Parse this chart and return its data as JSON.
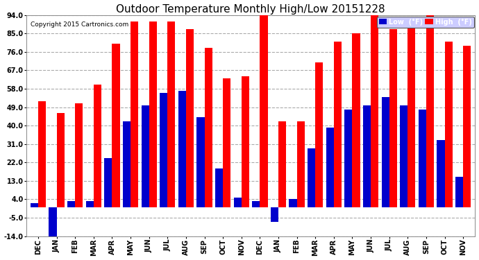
{
  "title": "Outdoor Temperature Monthly High/Low 20151228",
  "copyright": "Copyright 2015 Cartronics.com",
  "legend_low": "Low  (°F)",
  "legend_high": "High  (°F)",
  "months": [
    "DEC",
    "JAN",
    "FEB",
    "MAR",
    "APR",
    "MAY",
    "JUN",
    "JUL",
    "AUG",
    "SEP",
    "OCT",
    "NOV",
    "DEC",
    "JAN",
    "FEB",
    "MAR",
    "APR",
    "MAY",
    "JUN",
    "JUL",
    "AUG",
    "SEP",
    "OCT",
    "NOV"
  ],
  "high": [
    52,
    46,
    51,
    60,
    80,
    91,
    91,
    91,
    87,
    78,
    63,
    64,
    95,
    42,
    42,
    71,
    81,
    85,
    95,
    87,
    89,
    96,
    81,
    79
  ],
  "low": [
    2,
    -14,
    3,
    3,
    24,
    42,
    50,
    56,
    57,
    44,
    19,
    5,
    3,
    -7,
    4,
    29,
    39,
    48,
    50,
    54,
    50,
    48,
    33,
    15
  ],
  "ylim": [
    -14.0,
    94.0
  ],
  "yticks": [
    -14.0,
    -5.0,
    4.0,
    13.0,
    22.0,
    31.0,
    40.0,
    49.0,
    58.0,
    67.0,
    76.0,
    85.0,
    94.0
  ],
  "bar_width": 0.42,
  "high_color": "#ff0000",
  "low_color": "#0000cc",
  "bg_color": "#ffffff",
  "grid_color": "#aaaaaa",
  "title_fontsize": 11,
  "tick_fontsize": 7,
  "legend_low_bg": "#0000cc",
  "legend_high_bg": "#ff0000"
}
